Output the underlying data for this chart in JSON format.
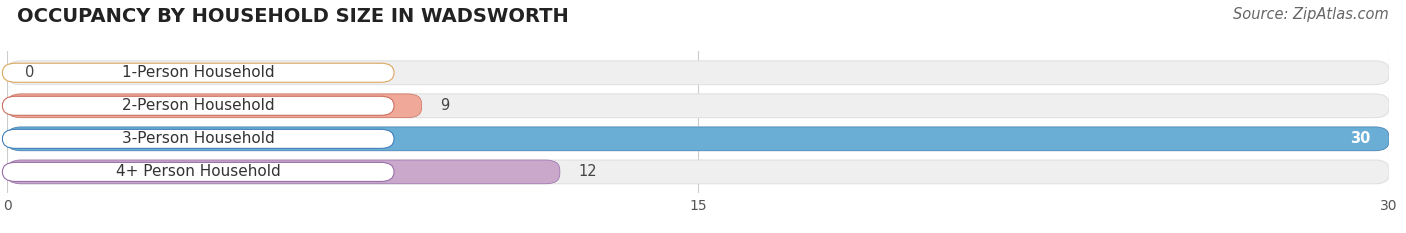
{
  "title": "OCCUPANCY BY HOUSEHOLD SIZE IN WADSWORTH",
  "source": "Source: ZipAtlas.com",
  "categories": [
    "1-Person Household",
    "2-Person Household",
    "3-Person Household",
    "4+ Person Household"
  ],
  "values": [
    0,
    9,
    30,
    12
  ],
  "bar_colors": [
    "#f7cc94",
    "#f0a898",
    "#6aaed6",
    "#c9a8cc"
  ],
  "bar_edge_colors": [
    "#dba860",
    "#cc7060",
    "#4080b8",
    "#9870a8"
  ],
  "label_border_colors": [
    "#dba860",
    "#cc7060",
    "#4080b8",
    "#9870a8"
  ],
  "xlim": [
    0,
    30
  ],
  "xticks": [
    0,
    15,
    30
  ],
  "title_fontsize": 14,
  "source_fontsize": 10.5,
  "label_fontsize": 11,
  "value_fontsize": 10.5,
  "background_color": "#ffffff",
  "bar_bg_color": "#efefef",
  "bar_bg_edge_color": "#dedede",
  "grid_color": "#cccccc"
}
